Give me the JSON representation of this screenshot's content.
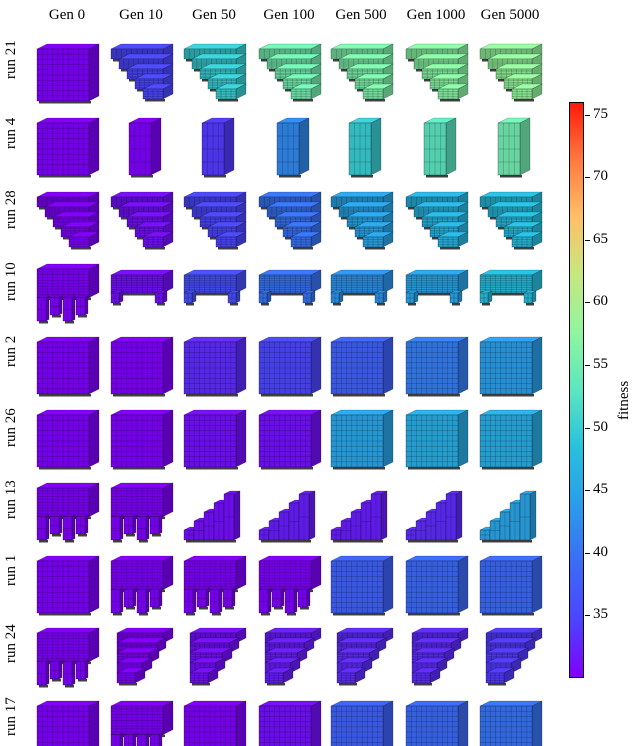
{
  "columns": [
    "Gen 0",
    "Gen 10",
    "Gen 50",
    "Gen 100",
    "Gen 500",
    "Gen 1000",
    "Gen 5000"
  ],
  "rows": [
    {
      "run": "run 21",
      "shape": [
        "full",
        "stairs",
        "stairs",
        "stairs",
        "stairs",
        "stairs",
        "stairs"
      ],
      "fitness": [
        30,
        35,
        50,
        55,
        56,
        57,
        58
      ]
    },
    {
      "run": "run 4",
      "shape": [
        "full",
        "slab",
        "slab",
        "slab",
        "slab",
        "slab",
        "slab"
      ],
      "fitness": [
        30,
        30,
        34,
        42,
        50,
        53,
        55
      ]
    },
    {
      "run": "run 28",
      "shape": [
        "stairs",
        "stairs",
        "stairs",
        "stairs",
        "stairs",
        "stairs",
        "stairs"
      ],
      "fitness": [
        30,
        31,
        35,
        40,
        45,
        47,
        48
      ]
    },
    {
      "run": "run 10",
      "shape": [
        "broken",
        "table",
        "table",
        "table",
        "table",
        "table",
        "table"
      ],
      "fitness": [
        30,
        31,
        36,
        40,
        43,
        45,
        48
      ]
    },
    {
      "run": "run 2",
      "shape": [
        "full",
        "full",
        "full",
        "full",
        "full",
        "full",
        "full"
      ],
      "fitness": [
        30,
        30,
        33,
        35,
        38,
        41,
        44
      ]
    },
    {
      "run": "run 26",
      "shape": [
        "full",
        "full",
        "full",
        "full",
        "full",
        "full",
        "full"
      ],
      "fitness": [
        30,
        30,
        31,
        31,
        45,
        46,
        46
      ]
    },
    {
      "run": "run 13",
      "shape": [
        "broken",
        "broken",
        "ramp",
        "ramp",
        "ramp",
        "ramp",
        "ramp"
      ],
      "fitness": [
        30,
        30,
        31,
        32,
        32,
        33,
        45
      ]
    },
    {
      "run": "run 1",
      "shape": [
        "full",
        "broken",
        "broken",
        "broken",
        "full",
        "full",
        "full"
      ],
      "fitness": [
        30,
        30,
        30,
        30,
        38,
        39,
        39
      ]
    },
    {
      "run": "run 24",
      "shape": [
        "broken",
        "wedge",
        "wedge",
        "wedge",
        "wedge",
        "wedge",
        "wedge"
      ],
      "fitness": [
        30,
        30,
        31,
        32,
        33,
        33,
        34
      ]
    },
    {
      "run": "run 17",
      "shape": [
        "full",
        "broken",
        "full",
        "full",
        "full",
        "full",
        "full"
      ],
      "fitness": [
        30,
        30,
        30,
        31,
        38,
        39,
        40
      ]
    }
  ],
  "colorbar": {
    "label": "fitness",
    "min": 30,
    "max": 76,
    "ticks": [
      35,
      40,
      45,
      50,
      55,
      60,
      65,
      70,
      75
    ],
    "colormap": "rainbow",
    "colors": [
      "#8000ff",
      "#4c44ff",
      "#3b6cf5",
      "#2b9cea",
      "#28c0dd",
      "#5ce6c0",
      "#90f5a0",
      "#c6e880",
      "#ffc068",
      "#ff7a40",
      "#ff1a0a"
    ]
  }
}
